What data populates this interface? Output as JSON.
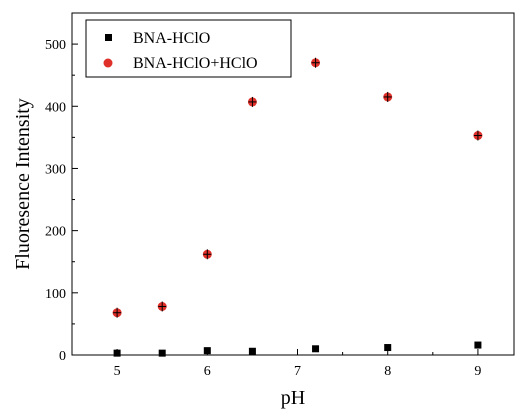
{
  "chart_data": {
    "type": "scatter",
    "xlabel": "pH",
    "ylabel": "Fluoresence Intensity",
    "xlim": [
      4.5,
      9.4
    ],
    "ylim": [
      0,
      550
    ],
    "xticks": [
      5,
      6,
      7,
      8,
      9
    ],
    "yticks": [
      0,
      100,
      200,
      300,
      400,
      500
    ],
    "grid": false,
    "legend_position": "top-left",
    "series": [
      {
        "name": "BNA-HClO",
        "marker": "square",
        "color": "#000000",
        "x": [
          5,
          5.5,
          6,
          6.5,
          7.2,
          8,
          9
        ],
        "y": [
          3,
          3,
          7,
          6,
          10,
          12,
          16
        ]
      },
      {
        "name": "BNA-HClO+HClO",
        "marker": "circle",
        "color": "#e0302a",
        "x": [
          5,
          5.5,
          6,
          6.5,
          7.2,
          8,
          9
        ],
        "y": [
          68,
          78,
          162,
          407,
          470,
          415,
          353
        ]
      }
    ]
  }
}
